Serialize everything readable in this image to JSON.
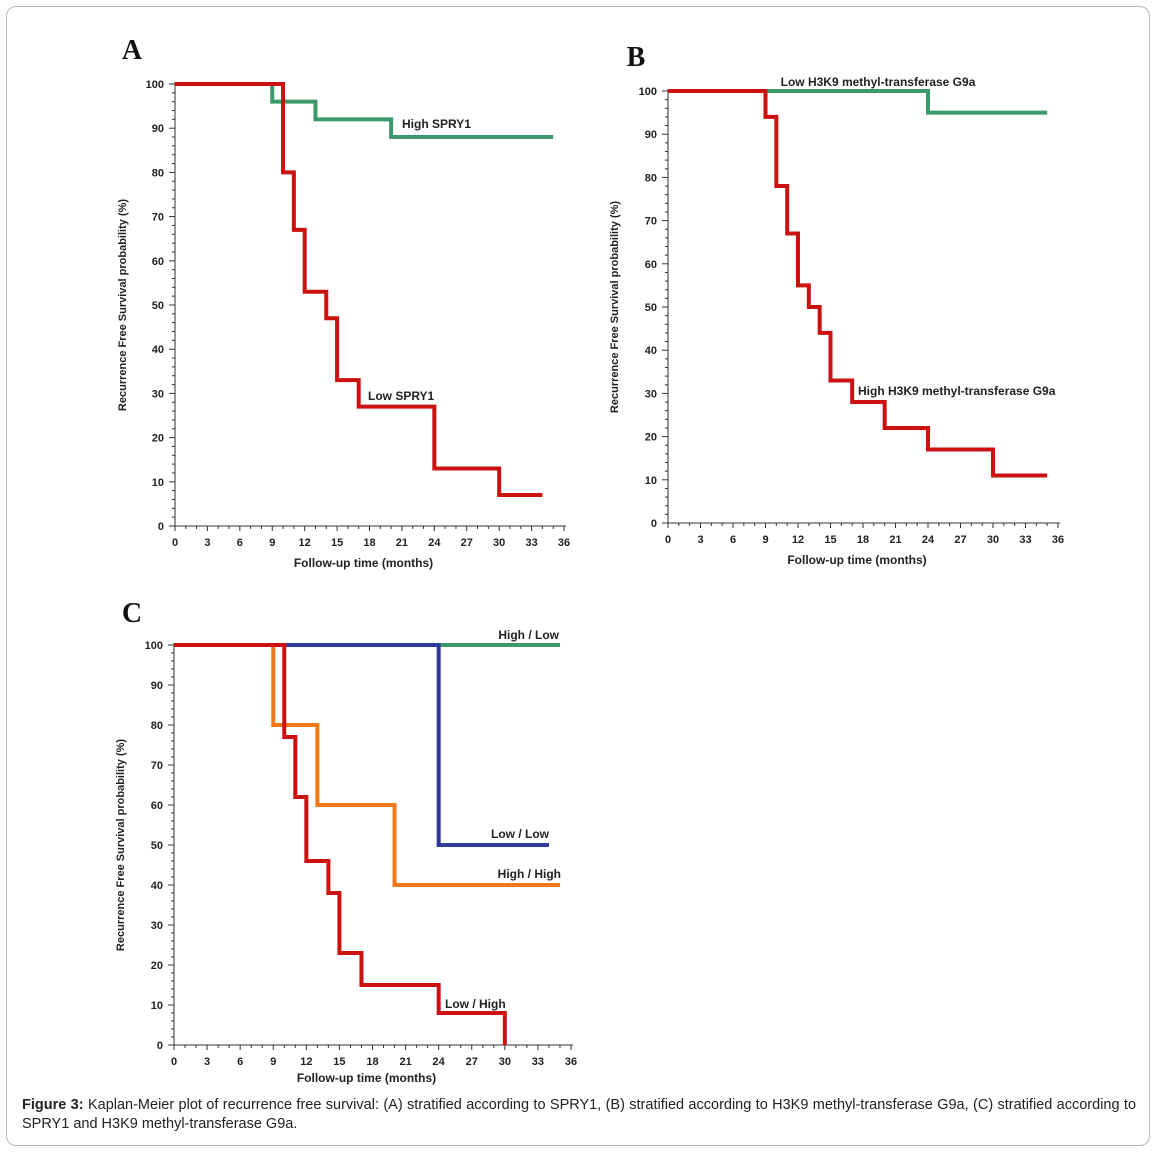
{
  "caption": {
    "label": "Figure 3:",
    "text": "Kaplan-Meier plot of recurrence free survival: (A) stratified according to SPRY1, (B) stratified according to H3K9 methyl-transferase G9a, (C) stratified according to SPRY1 and H3K9 methyl-transferase G9a."
  },
  "chart_data": [
    {
      "panel": "A",
      "type": "line",
      "step": true,
      "xlabel": "Follow-up time (months)",
      "ylabel": "Recurrence Free Survival probability (%)",
      "xlim": [
        0,
        36
      ],
      "ylim": [
        0,
        100
      ],
      "xticks": [
        0,
        3,
        6,
        9,
        12,
        15,
        18,
        21,
        24,
        27,
        30,
        33,
        36
      ],
      "yticks": [
        0,
        10,
        20,
        30,
        40,
        50,
        60,
        70,
        80,
        90,
        100
      ],
      "series": [
        {
          "name": "High SPRY1",
          "color": "#3a9a6a",
          "x": [
            0,
            9,
            13,
            20,
            35
          ],
          "y": [
            100,
            96,
            92,
            88,
            88
          ]
        },
        {
          "name": "Low SPRY1",
          "color": "#cc1111",
          "x": [
            0,
            10,
            11,
            12,
            14,
            15,
            17,
            24,
            30,
            34
          ],
          "y": [
            100,
            80,
            67,
            53,
            47,
            33,
            27,
            13,
            7,
            7
          ]
        }
      ]
    },
    {
      "panel": "B",
      "type": "line",
      "step": true,
      "xlabel": "Follow-up time (months)",
      "ylabel": "Recurrence Free Survival probability (%)",
      "xlim": [
        0,
        36
      ],
      "ylim": [
        0,
        100
      ],
      "xticks": [
        0,
        3,
        6,
        9,
        12,
        15,
        18,
        21,
        24,
        27,
        30,
        33,
        36
      ],
      "yticks": [
        0,
        10,
        20,
        30,
        40,
        50,
        60,
        70,
        80,
        90,
        100
      ],
      "series": [
        {
          "name": "Low H3K9 methyl-transferase G9a",
          "color": "#3a9a6a",
          "x": [
            0,
            24,
            35
          ],
          "y": [
            100,
            95,
            95
          ]
        },
        {
          "name": "High H3K9 methyl-transferase G9a",
          "color": "#cc1111",
          "x": [
            0,
            9,
            10,
            11,
            12,
            13,
            14,
            15,
            17,
            20,
            24,
            30,
            35
          ],
          "y": [
            100,
            94,
            78,
            67,
            55,
            50,
            44,
            33,
            28,
            22,
            17,
            11,
            11
          ]
        }
      ]
    },
    {
      "panel": "C",
      "type": "line",
      "step": true,
      "xlabel": "Follow-up time (months)",
      "ylabel": "Recurrence Free Survival probability (%)",
      "xlim": [
        0,
        36
      ],
      "ylim": [
        0,
        100
      ],
      "xticks": [
        0,
        3,
        6,
        9,
        12,
        15,
        18,
        21,
        24,
        27,
        30,
        33,
        36
      ],
      "yticks": [
        0,
        10,
        20,
        30,
        40,
        50,
        60,
        70,
        80,
        90,
        100
      ],
      "series": [
        {
          "name": "High / Low",
          "color": "#3a9a6a",
          "x": [
            0,
            35
          ],
          "y": [
            100,
            100
          ]
        },
        {
          "name": "Low / Low",
          "color": "#2e3a9c",
          "x": [
            0,
            24,
            34
          ],
          "y": [
            100,
            50,
            50
          ]
        },
        {
          "name": "High / High",
          "color": "#f07a1a",
          "x": [
            0,
            9,
            13,
            20,
            35
          ],
          "y": [
            100,
            80,
            60,
            40,
            40
          ]
        },
        {
          "name": "Low / High",
          "color": "#cc1111",
          "x": [
            0,
            10,
            11,
            12,
            14,
            15,
            17,
            24,
            30,
            30
          ],
          "y": [
            100,
            77,
            62,
            46,
            38,
            23,
            15,
            8,
            0,
            0
          ]
        }
      ]
    }
  ]
}
